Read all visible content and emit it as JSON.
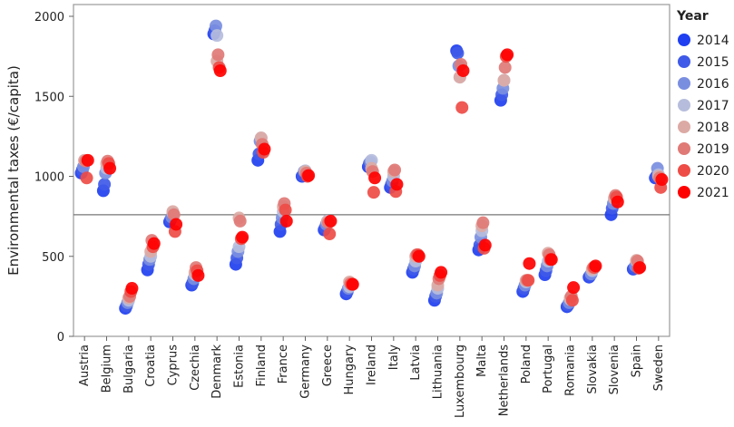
{
  "chart_data": {
    "type": "scatter",
    "title": "",
    "ylabel": "Environmental taxes (€/capita)",
    "xlabel": "",
    "ylim": [
      0,
      2000
    ],
    "yticks": [
      0,
      500,
      1000,
      1500,
      2000
    ],
    "reference_line": 760,
    "legend_title": "Year",
    "years": [
      "2014",
      "2015",
      "2016",
      "2017",
      "2018",
      "2019",
      "2020",
      "2021"
    ],
    "year_colors": [
      "#1f3ff0",
      "#3f5ae8",
      "#7a8ee0",
      "#b6bddc",
      "#dcaaa4",
      "#e07a76",
      "#ee4c46",
      "#ff0000"
    ],
    "countries": [
      "Austria",
      "Belgium",
      "Bulgaria",
      "Croatia",
      "Cyprus",
      "Czechia",
      "Denmark",
      "Estonia",
      "Finland",
      "France",
      "Germany",
      "Greece",
      "Hungary",
      "Ireland",
      "Italy",
      "Latvia",
      "Lithuania",
      "Luxembourg",
      "Malta",
      "Netherlands",
      "Poland",
      "Portugal",
      "Romania",
      "Slovakia",
      "Slovenia",
      "Spain",
      "Sweden"
    ],
    "series": [
      {
        "name": "2014",
        "values": [
          1020,
          910,
          175,
          415,
          715,
          320,
          1890,
          450,
          1100,
          655,
          1000,
          665,
          265,
          1060,
          930,
          400,
          225,
          1785,
          540,
          1475,
          280,
          385,
          185,
          370,
          760,
          420,
          990
        ]
      },
      {
        "name": "2015",
        "values": [
          1040,
          950,
          190,
          450,
          730,
          335,
          1910,
          490,
          1140,
          700,
          1005,
          680,
          280,
          1080,
          950,
          420,
          250,
          1770,
          570,
          1510,
          300,
          410,
          195,
          380,
          800,
          425,
          1000
        ]
      },
      {
        "name": "2016",
        "values": [
          1060,
          1020,
          210,
          480,
          745,
          360,
          1940,
          530,
          1220,
          740,
          1030,
          700,
          300,
          1090,
          970,
          440,
          270,
          1690,
          620,
          1550,
          320,
          440,
          210,
          390,
          830,
          440,
          1050
        ]
      },
      {
        "name": "2017",
        "values": [
          1100,
          1050,
          225,
          500,
          770,
          385,
          1880,
          560,
          1240,
          780,
          1035,
          720,
          310,
          1100,
          1000,
          470,
          300,
          1620,
          660,
          1600,
          340,
          470,
          230,
          410,
          860,
          470,
          1010
        ]
      },
      {
        "name": "2018",
        "values": [
          1100,
          1080,
          240,
          530,
          780,
          400,
          1720,
          740,
          1240,
          810,
          1030,
          715,
          340,
          1050,
          1030,
          500,
          320,
          1620,
          690,
          1600,
          350,
          520,
          240,
          420,
          865,
          475,
          1000
        ]
      },
      {
        "name": "2019",
        "values": [
          1095,
          1095,
          250,
          600,
          760,
          430,
          1760,
          720,
          1200,
          830,
          1020,
          710,
          330,
          1030,
          1040,
          510,
          360,
          1700,
          710,
          1680,
          350,
          510,
          250,
          430,
          880,
          470,
          990
        ]
      },
      {
        "name": "2020",
        "values": [
          990,
          1080,
          280,
          560,
          655,
          410,
          1680,
          610,
          1150,
          790,
          1000,
          640,
          325,
          900,
          905,
          510,
          380,
          1430,
          550,
          1750,
          350,
          480,
          225,
          430,
          870,
          425,
          930
        ]
      },
      {
        "name": "2021",
        "values": [
          1100,
          1050,
          300,
          580,
          700,
          380,
          1660,
          620,
          1170,
          720,
          1005,
          720,
          325,
          990,
          950,
          500,
          400,
          1660,
          570,
          1760,
          455,
          480,
          305,
          440,
          840,
          430,
          980
        ]
      }
    ]
  }
}
